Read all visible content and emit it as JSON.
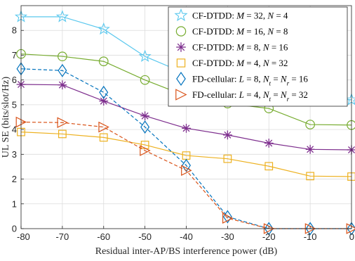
{
  "chart_data": {
    "type": "line",
    "title": "",
    "xlabel": "Residual inter-AP/BS interference power (dB)",
    "ylabel": "UL SE (bits/slot/Hz)",
    "x": [
      -80,
      -70,
      -60,
      -50,
      -40,
      -30,
      -20,
      -10,
      0
    ],
    "xticks": [
      "-80",
      "-70",
      "-60",
      "-50",
      "-40",
      "-30",
      "-20",
      "-10",
      "0"
    ],
    "yticks": [
      "0",
      "1",
      "2",
      "3",
      "4",
      "5",
      "6",
      "7",
      "8"
    ],
    "xlim": [
      -80,
      0
    ],
    "ylim": [
      0,
      9
    ],
    "grid": true,
    "legend_position": "top-right",
    "series": [
      {
        "name": "CF-DTDD: M = 32, N = 4",
        "legend_parts": [
          "CF-DTDD: ",
          "M",
          " = 32, ",
          "N",
          " = 4"
        ],
        "color": "#5bc8ee",
        "marker": "pentagram",
        "dash": "solid",
        "values": [
          8.55,
          8.55,
          8.05,
          6.95,
          6.25,
          5.85,
          5.55,
          5.35,
          5.2
        ]
      },
      {
        "name": "CF-DTDD: M = 16, N = 8",
        "legend_parts": [
          "CF-DTDD: ",
          "M",
          " = 16, ",
          "N",
          " = 8"
        ],
        "color": "#77ac30",
        "marker": "circle",
        "dash": "solid",
        "values": [
          7.05,
          6.95,
          6.75,
          6.0,
          5.35,
          5.05,
          4.85,
          4.2,
          4.18
        ]
      },
      {
        "name": "CF-DTDD: M = 8, N = 16",
        "legend_parts": [
          "CF-DTDD: ",
          "M",
          " = 8, ",
          "N",
          " = 16"
        ],
        "color": "#7e2f8e",
        "marker": "asterisk",
        "dash": "solid",
        "values": [
          5.82,
          5.8,
          5.15,
          4.55,
          4.05,
          3.78,
          3.45,
          3.2,
          3.18
        ]
      },
      {
        "name": "CF-DTDD: M = 4, N = 32",
        "legend_parts": [
          "CF-DTDD: ",
          "M",
          " = 4, ",
          "N",
          " = 32"
        ],
        "color": "#edb120",
        "marker": "square",
        "dash": "solid",
        "values": [
          3.9,
          3.82,
          3.68,
          3.38,
          2.95,
          2.82,
          2.52,
          2.12,
          2.1
        ]
      },
      {
        "name": "FD-cellular: L = 8, Nt = Nr = 16",
        "legend_parts": [
          "FD-cellular: ",
          "L",
          " = 8, ",
          "N",
          "t",
          " = ",
          "N",
          "r",
          " = 16"
        ],
        "color": "#0072bd",
        "marker": "diamond",
        "dash": "dashed",
        "values": [
          6.45,
          6.38,
          5.5,
          4.1,
          2.55,
          0.48,
          0.0,
          0.0,
          0.0
        ]
      },
      {
        "name": "FD-cellular: L = 4, Nt = Nr = 32",
        "legend_parts": [
          "FD-cellular: ",
          "L",
          " = 4, ",
          "N",
          "t",
          " = ",
          "N",
          "r",
          " = 32"
        ],
        "color": "#d95319",
        "marker": "triangle-right",
        "dash": "dashed",
        "values": [
          4.3,
          4.28,
          4.1,
          3.15,
          2.35,
          0.42,
          0.0,
          0.0,
          0.0
        ]
      }
    ]
  }
}
